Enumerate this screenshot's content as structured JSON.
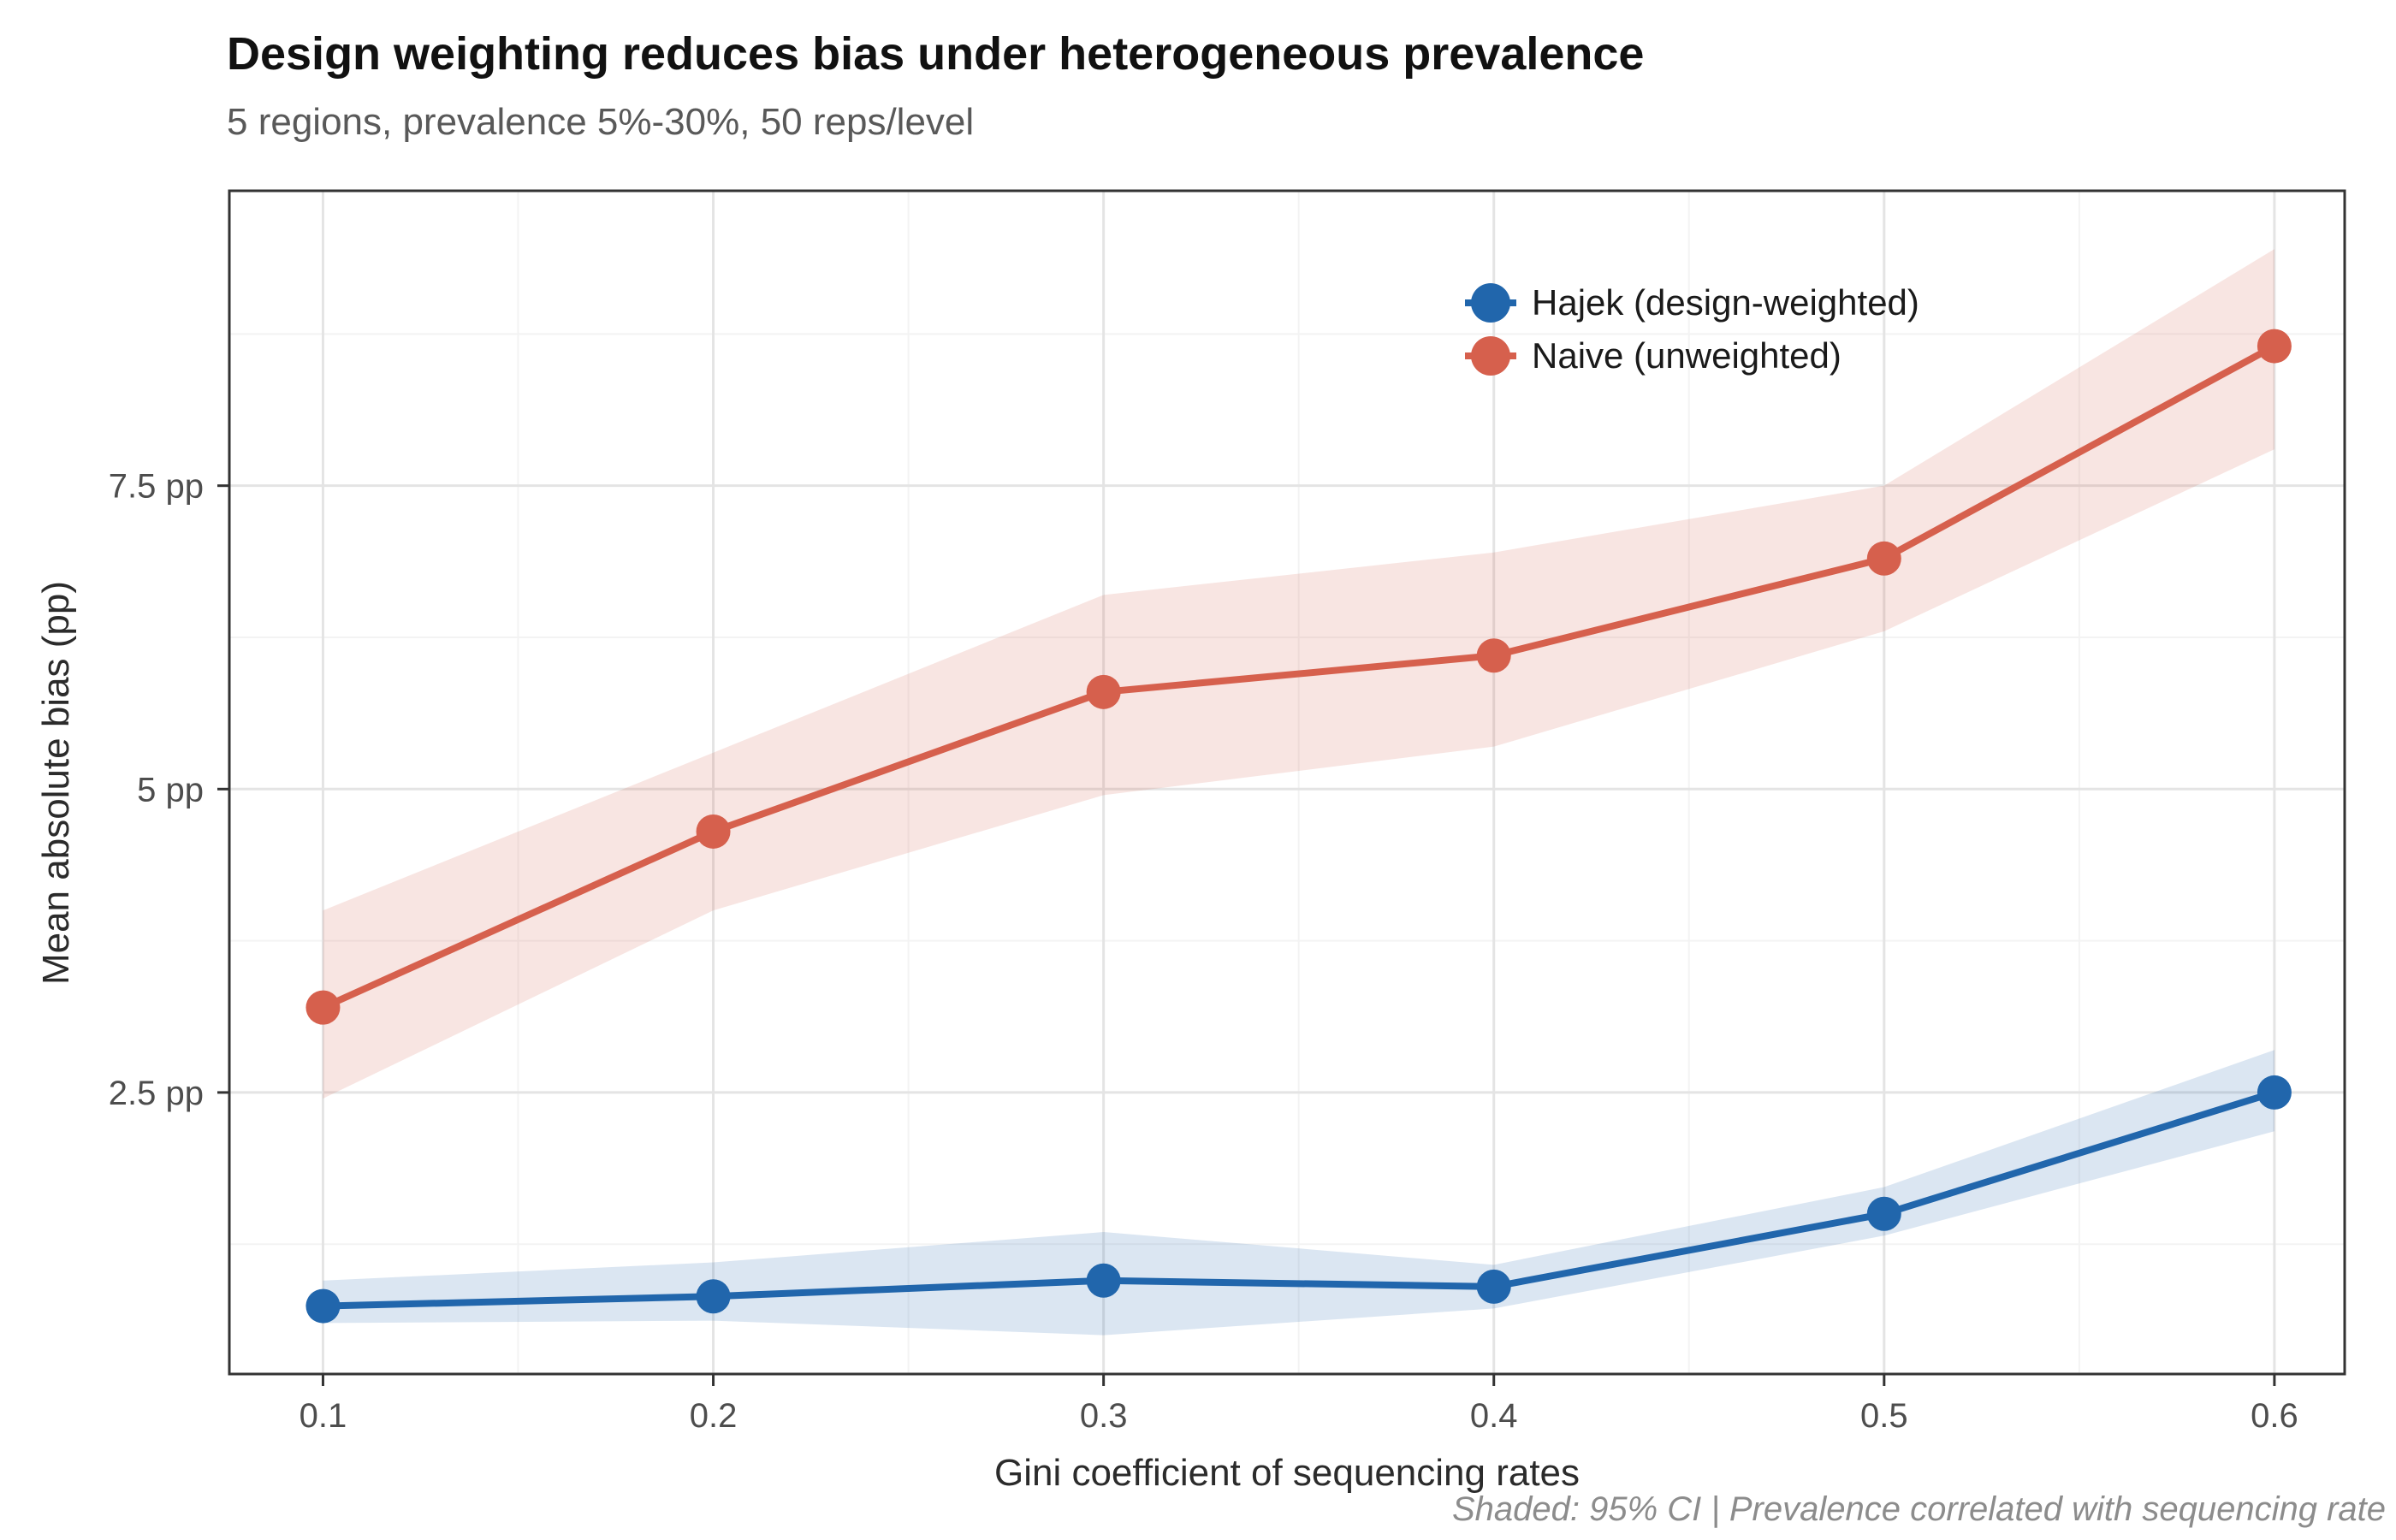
{
  "chart_data": {
    "type": "line",
    "title": "Design weighting reduces bias under heterogeneous prevalence",
    "subtitle": "5 regions, prevalence 5%-30%, 50 reps/level",
    "caption": "Shaded: 95% CI | Prevalence correlated with sequencing rate",
    "xlabel": "Gini coefficient of sequencing rates",
    "ylabel": "Mean absolute bias (pp)",
    "x": [
      0.1,
      0.2,
      0.3,
      0.4,
      0.5,
      0.6
    ],
    "x_tick_labels": [
      "0.1",
      "0.2",
      "0.3",
      "0.4",
      "0.5",
      "0.6"
    ],
    "y_ticks": [
      {
        "value": 2.5,
        "label": "2.5 pp"
      },
      {
        "value": 5,
        "label": "5 pp"
      },
      {
        "value": 7.5,
        "label": "7.5 pp"
      }
    ],
    "x_minor_ticks": [
      0.15,
      0.25,
      0.35,
      0.45,
      0.55
    ],
    "y_minor_ticks": [
      1.25,
      3.75,
      6.25,
      8.75
    ],
    "xlim": [
      0.076,
      0.618
    ],
    "ylim": [
      0.18,
      9.93
    ],
    "grid": true,
    "legend_position": "inside-top-right",
    "ribbon_opacity": 0.16,
    "note": "Shaded bands are 95% CI around each mean-absolute-bias curve",
    "series": [
      {
        "name": "Hajek (design-weighted)",
        "color": "#2166ac",
        "values": [
          0.74,
          0.82,
          0.95,
          0.9,
          1.5,
          2.5
        ],
        "ci_low": [
          0.6,
          0.62,
          0.5,
          0.72,
          1.32,
          2.18
        ],
        "ci_high": [
          0.95,
          1.1,
          1.35,
          1.08,
          1.72,
          2.85
        ]
      },
      {
        "name": "Naive (unweighted)",
        "color": "#d6604d",
        "values": [
          3.2,
          4.65,
          5.8,
          6.1,
          6.9,
          8.65
        ],
        "ci_low": [
          2.45,
          4.0,
          4.95,
          5.35,
          6.3,
          7.8
        ],
        "ci_high": [
          4.0,
          5.3,
          6.6,
          6.95,
          7.5,
          9.45
        ]
      }
    ]
  }
}
